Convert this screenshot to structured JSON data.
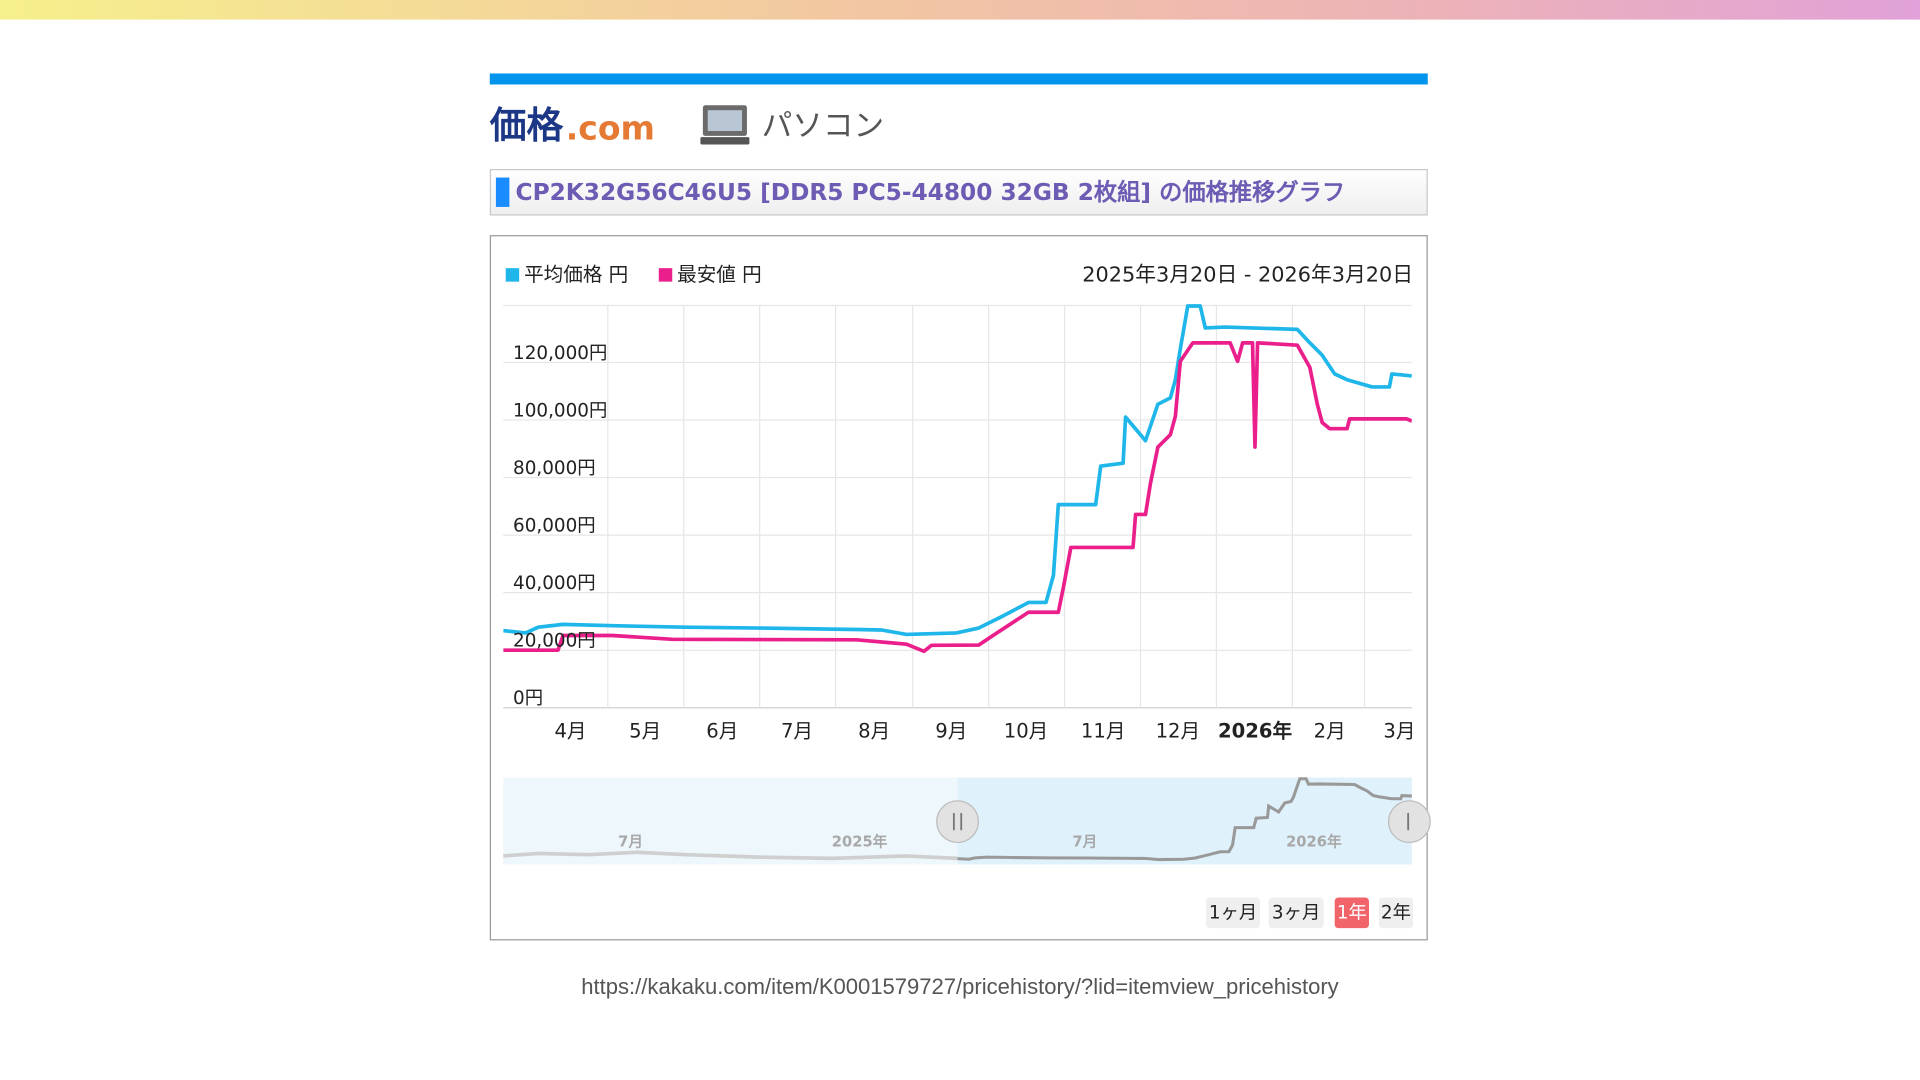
{
  "header": {
    "logo_name": "価格",
    "logo_domain": ".com",
    "category": "パソコン"
  },
  "chart_data": {
    "type": "line",
    "title": "CP2K32G56C46U5 [DDR5 PC5-44800 32GB 2枚組] の価格推移グラフ",
    "subtitle": "2025年3月20日 - 2026年3月20日",
    "series": [
      {
        "name": "平均価格 円",
        "color": "#1fb6ea",
        "x": [
          0,
          9,
          14,
          24,
          44,
          73,
          103,
          142,
          152,
          162,
          182,
          191,
          201,
          211,
          218,
          221,
          223,
          238,
          240,
          249,
          250,
          258,
          263,
          268,
          270,
          272,
          275,
          280,
          282,
          290,
          319,
          324,
          329,
          334,
          339,
          349,
          356,
          357,
          365
        ],
        "values": [
          26800,
          26000,
          28000,
          29000,
          28500,
          28000,
          27700,
          27200,
          27000,
          25500,
          26000,
          27700,
          32000,
          36600,
          36600,
          46000,
          70600,
          70600,
          84000,
          85000,
          101000,
          92800,
          105500,
          107700,
          114000,
          124700,
          139600,
          139600,
          132000,
          132300,
          131500,
          126800,
          122500,
          116000,
          114000,
          111500,
          111500,
          116000,
          115300
        ]
      },
      {
        "name": "最安値 円",
        "color": "#ea1f8c",
        "x": [
          0,
          22,
          24,
          44,
          68,
          142,
          162,
          169,
          172,
          191,
          196,
          211,
          223,
          225,
          228,
          231,
          253,
          254,
          258,
          260,
          263,
          268,
          270,
          272,
          277,
          292,
          295,
          297,
          301,
          302,
          303,
          319,
          324,
          327,
          329,
          332,
          339,
          340,
          363,
          365
        ],
        "values": [
          20000,
          20000,
          25100,
          25100,
          23800,
          23600,
          22100,
          19600,
          21700,
          21800,
          24700,
          33200,
          33200,
          41700,
          55700,
          55700,
          55700,
          67200,
          67200,
          77900,
          90600,
          94900,
          101300,
          120400,
          126800,
          126800,
          120400,
          126800,
          126800,
          90600,
          126800,
          126000,
          118300,
          105500,
          99100,
          97000,
          97000,
          100400,
          100400,
          99600
        ]
      }
    ],
    "xlim": [
      0,
      365
    ],
    "xticks": [
      {
        "value": 27,
        "label": "4月"
      },
      {
        "value": 57,
        "label": "5月"
      },
      {
        "value": 88,
        "label": "6月"
      },
      {
        "value": 118,
        "label": "7月"
      },
      {
        "value": 149,
        "label": "8月"
      },
      {
        "value": 180,
        "label": "9月"
      },
      {
        "value": 210,
        "label": "10月"
      },
      {
        "value": 241,
        "label": "11月"
      },
      {
        "value": 271,
        "label": "12月"
      },
      {
        "value": 302,
        "label": "2026年",
        "bold": true
      },
      {
        "value": 332,
        "label": "2月"
      },
      {
        "value": 360,
        "label": "3月"
      }
    ],
    "ylim": [
      0,
      140000
    ],
    "yticks": [
      {
        "value": 0,
        "label": "0円"
      },
      {
        "value": 20000,
        "label": "20,000円"
      },
      {
        "value": 40000,
        "label": "40,000円"
      },
      {
        "value": 60000,
        "label": "60,000円"
      },
      {
        "value": 80000,
        "label": "80,000円"
      },
      {
        "value": 100000,
        "label": "100,000円"
      },
      {
        "value": 120000,
        "label": "120,000円"
      }
    ],
    "grid": true
  },
  "navigator": {
    "labels": [
      "7月",
      "2025年",
      "7月",
      "2026年"
    ]
  },
  "range_buttons": {
    "items": [
      "1ヶ月",
      "3ヶ月",
      "1年",
      "2年"
    ],
    "selected": 2
  },
  "url": "https://kakaku.com/item/K0001579727/pricehistory/?lid=itemview_pricehistory"
}
